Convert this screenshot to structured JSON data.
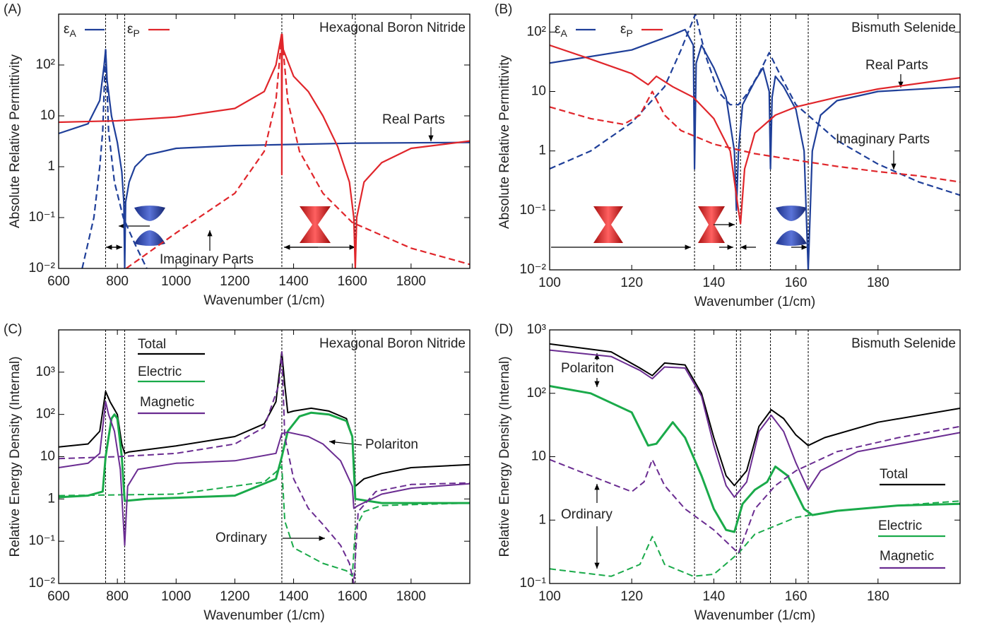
{
  "chart_data": [
    {
      "type": "line",
      "panel": "(A)",
      "title": "Hexagonal Boron Nitride",
      "xlabel": "Wavenumber (1/cm)",
      "ylabel": "Absolute Relative Permittivity",
      "ylog": true,
      "xlim": [
        600,
        2000
      ],
      "ylim": [
        0.01,
        1000
      ],
      "xticks": [
        600,
        800,
        1000,
        1200,
        1400,
        1600,
        1800
      ],
      "yticks": [
        {
          "value": 0.01,
          "label": "10⁻²"
        },
        {
          "value": 0.1,
          "label": "10⁻¹"
        },
        1,
        10,
        {
          "value": 100,
          "label": "10²"
        }
      ],
      "vlines": [
        760,
        825,
        1360,
        1610
      ],
      "legend": [
        {
          "name": "εA",
          "color": "#1f3f99"
        },
        {
          "name": "εP",
          "color": "#e0262b"
        }
      ],
      "annotations": [
        "Real Parts",
        "Imaginary Parts"
      ],
      "series": [
        {
          "color": "#1f3f99",
          "dash": false,
          "x": [
            600,
            700,
            740,
            755,
            760,
            765,
            780,
            800,
            815,
            822,
            825,
            828,
            840,
            860,
            900,
            1000,
            1200,
            1600,
            2000
          ],
          "values": [
            4.5,
            7,
            20,
            100,
            200,
            50,
            10,
            3,
            0.8,
            0.2,
            0.01,
            0.2,
            0.5,
            1.0,
            1.7,
            2.3,
            2.6,
            2.9,
            3.0
          ]
        },
        {
          "color": "#1f3f99",
          "dash": true,
          "x": [
            680,
            720,
            740,
            750,
            760,
            770,
            790,
            820,
            860,
            900
          ],
          "values": [
            0.01,
            0.1,
            1,
            5,
            200,
            5,
            0.5,
            0.1,
            0.03,
            0.01
          ]
        },
        {
          "color": "#e0262b",
          "dash": false,
          "x": [
            600,
            800,
            1000,
            1200,
            1300,
            1340,
            1355,
            1359,
            1360,
            1361,
            1365,
            1400,
            1450,
            1500,
            1550,
            1590,
            1605,
            1610,
            1615,
            1640,
            1700,
            1800,
            2000
          ],
          "values": [
            7.5,
            8,
            9.5,
            14,
            30,
            100,
            300,
            400,
            0.7,
            400,
            200,
            60,
            30,
            10,
            2.5,
            0.5,
            0.1,
            0.01,
            0.1,
            0.5,
            1.2,
            2.3,
            3.2
          ]
        },
        {
          "color": "#e0262b",
          "dash": true,
          "x": [
            830,
            1000,
            1200,
            1300,
            1340,
            1360,
            1380,
            1420,
            1500,
            1600,
            1800,
            2000
          ],
          "values": [
            0.01,
            0.05,
            0.3,
            2,
            20,
            400,
            20,
            2,
            0.3,
            0.08,
            0.025,
            0.012
          ]
        }
      ]
    },
    {
      "type": "line",
      "panel": "(B)",
      "title": "Bismuth Selenide",
      "xlabel": "Wavenumber (1/cm)",
      "ylabel": "Absolute Relative Permittivity",
      "ylog": true,
      "xlim": [
        100,
        200
      ],
      "ylim": [
        0.01,
        200
      ],
      "xticks": [
        100,
        120,
        140,
        160,
        180
      ],
      "yticks": [
        {
          "value": 0.01,
          "label": "10⁻²"
        },
        {
          "value": 0.1,
          "label": "10⁻¹"
        },
        1,
        10,
        {
          "value": 100,
          "label": "10²"
        }
      ],
      "vlines": [
        135.3,
        145.5,
        146.5,
        153.8,
        163
      ],
      "legend": [
        {
          "name": "εA",
          "color": "#1f3f99"
        },
        {
          "name": "εP",
          "color": "#e0262b"
        }
      ],
      "annotations": [
        "Real Parts",
        "Imaginary Parts"
      ],
      "series": [
        {
          "color": "#1f3f99",
          "dash": false,
          "x": [
            100,
            120,
            130,
            133,
            135,
            135.3,
            135.7,
            137,
            140,
            143,
            145,
            145.5,
            146,
            147,
            150,
            152,
            153.5,
            153.8,
            154.2,
            155,
            157,
            160,
            162,
            163,
            164,
            166,
            170,
            180,
            200
          ],
          "values": [
            30,
            50,
            90,
            110,
            60,
            0.5,
            30,
            60,
            25,
            8,
            1,
            0.1,
            1,
            6,
            15,
            25,
            10,
            0.5,
            8,
            18,
            12,
            5,
            1,
            0.01,
            1,
            4,
            7,
            10,
            12
          ]
        },
        {
          "color": "#1f3f99",
          "dash": true,
          "x": [
            100,
            110,
            120,
            128,
            132,
            135.5,
            138,
            141,
            144,
            146,
            148,
            151,
            153.5,
            156,
            160,
            165,
            170,
            180,
            190,
            200
          ],
          "values": [
            0.5,
            1,
            3,
            12,
            50,
            200,
            40,
            10,
            6,
            6,
            9,
            20,
            45,
            20,
            6,
            3,
            1.5,
            0.6,
            0.3,
            0.18
          ]
        },
        {
          "color": "#e0262b",
          "dash": false,
          "x": [
            100,
            110,
            120,
            124,
            126,
            130,
            135,
            140,
            144,
            146,
            146.5,
            147.5,
            150,
            155,
            160,
            170,
            180,
            200
          ],
          "values": [
            60,
            35,
            20,
            13,
            18,
            12,
            8,
            3.5,
            1,
            0.1,
            0.06,
            0.5,
            2,
            4,
            5.5,
            8,
            11,
            17
          ]
        },
        {
          "color": "#e0262b",
          "dash": true,
          "x": [
            100,
            110,
            118,
            122,
            125,
            128,
            132,
            140,
            150,
            160,
            170,
            180,
            190,
            200
          ],
          "values": [
            5.5,
            3.5,
            2.8,
            4,
            10,
            4,
            2.2,
            1.3,
            0.9,
            0.7,
            0.55,
            0.45,
            0.38,
            0.3
          ]
        }
      ]
    },
    {
      "type": "line",
      "panel": "(C)",
      "title": "Hexagonal Boron Nitride",
      "xlabel": "Wavenumber (1/cm)",
      "ylabel": "Relative Energy Density (Internal)",
      "ylog": true,
      "xlim": [
        600,
        2000
      ],
      "ylim": [
        0.01,
        10000
      ],
      "xticks": [
        600,
        800,
        1000,
        1200,
        1400,
        1600,
        1800
      ],
      "yticks": [
        {
          "value": 0.01,
          "label": "10⁻²"
        },
        {
          "value": 0.1,
          "label": "10⁻¹"
        },
        1,
        10,
        {
          "value": 100,
          "label": "10²"
        },
        {
          "value": 1000,
          "label": "10³"
        }
      ],
      "vlines": [
        760,
        825,
        1360,
        1610
      ],
      "legend": [
        {
          "name": "Total",
          "color": "#000000"
        },
        {
          "name": "Electric",
          "color": "#1aaa4a"
        },
        {
          "name": "Magnetic",
          "color": "#6a2c91"
        }
      ],
      "annotations": [
        "Polariton",
        "Ordinary"
      ],
      "series": [
        {
          "color": "#000000",
          "dash": false,
          "width": 2,
          "x": [
            600,
            700,
            740,
            760,
            775,
            800,
            815,
            825,
            840,
            1000,
            1200,
            1300,
            1340,
            1360,
            1370,
            1380,
            1400,
            1460,
            1520,
            1580,
            1600,
            1610,
            1640,
            1700,
            1800,
            2000
          ],
          "values": [
            17,
            20,
            40,
            350,
            200,
            100,
            20,
            12,
            13,
            18,
            30,
            60,
            200,
            3000,
            500,
            110,
            120,
            140,
            120,
            80,
            30,
            2,
            3,
            4,
            5.5,
            6.5
          ]
        },
        {
          "color": "#1aaa4a",
          "dash": false,
          "width": 3,
          "x": [
            600,
            700,
            750,
            760,
            780,
            790,
            800,
            815,
            825,
            900,
            1200,
            1340,
            1360,
            1380,
            1420,
            1460,
            1520,
            1580,
            1600,
            1610,
            1700,
            1800,
            2000
          ],
          "values": [
            1.1,
            1.2,
            1.5,
            10,
            80,
            100,
            80,
            10,
            0.9,
            1.0,
            1.2,
            3,
            10,
            40,
            90,
            110,
            100,
            70,
            30,
            1,
            0.8,
            0.8,
            0.8
          ]
        },
        {
          "color": "#1aaa4a",
          "dash": true,
          "width": 2,
          "x": [
            600,
            1000,
            1300,
            1350,
            1360,
            1370,
            1400,
            1500,
            1580,
            1600,
            1610,
            1640,
            1700,
            2000
          ],
          "values": [
            1.2,
            1.3,
            2.5,
            5,
            6,
            0.3,
            0.07,
            0.03,
            0.02,
            0.015,
            0.2,
            0.5,
            0.7,
            0.8
          ]
        },
        {
          "color": "#6a2c91",
          "dash": false,
          "width": 2,
          "x": [
            600,
            700,
            740,
            760,
            770,
            790,
            810,
            825,
            835,
            870,
            1000,
            1200,
            1340,
            1360,
            1380,
            1450,
            1500,
            1560,
            1600,
            1605,
            1620,
            1700,
            1800,
            2000
          ],
          "values": [
            5.5,
            7,
            12,
            200,
            100,
            40,
            5,
            0.08,
            2,
            5,
            7,
            8,
            12,
            35,
            38,
            30,
            20,
            8,
            2,
            0.6,
            0.7,
            1.3,
            1.8,
            2.3
          ]
        },
        {
          "color": "#6a2c91",
          "dash": true,
          "width": 2,
          "x": [
            600,
            800,
            1000,
            1200,
            1300,
            1350,
            1360,
            1370,
            1400,
            1450,
            1500,
            1560,
            1590,
            1605,
            1620,
            1680,
            1800,
            2000
          ],
          "values": [
            9,
            10,
            12,
            20,
            50,
            500,
            3000,
            30,
            3,
            0.6,
            0.25,
            0.08,
            0.03,
            0.01,
            0.5,
            1.5,
            2.2,
            2.4
          ]
        }
      ]
    },
    {
      "type": "line",
      "panel": "(D)",
      "title": "Bismuth Selenide",
      "xlabel": "Wavenumber (1/cm)",
      "ylabel": "Relative Energy Density (Internal)",
      "ylog": true,
      "xlim": [
        100,
        200
      ],
      "ylim": [
        0.1,
        1000
      ],
      "xticks": [
        100,
        120,
        140,
        160,
        180
      ],
      "yticks": [
        {
          "value": 0.1,
          "label": "10⁻¹"
        },
        1,
        10,
        {
          "value": 100,
          "label": "10²"
        },
        {
          "value": 1000,
          "label": "10³"
        }
      ],
      "vlines": [
        135.3,
        145.5,
        146.5,
        153.8,
        163
      ],
      "legend": [
        {
          "name": "Total",
          "color": "#000000"
        },
        {
          "name": "Electric",
          "color": "#1aaa4a"
        },
        {
          "name": "Magnetic",
          "color": "#6a2c91"
        }
      ],
      "annotations": [
        "Polariton",
        "Ordinary"
      ],
      "series": [
        {
          "color": "#000000",
          "dash": false,
          "width": 2,
          "x": [
            100,
            115,
            122,
            125,
            128,
            133,
            137,
            140,
            143,
            145,
            148,
            151,
            154,
            157,
            160,
            163,
            167,
            180,
            200
          ],
          "values": [
            600,
            450,
            250,
            190,
            300,
            280,
            100,
            20,
            5,
            3.5,
            6,
            30,
            55,
            40,
            22,
            15,
            20,
            35,
            58
          ]
        },
        {
          "color": "#6a2c91",
          "dash": false,
          "width": 2,
          "x": [
            100,
            115,
            122,
            125,
            128,
            133,
            137,
            140,
            143,
            145,
            148,
            151,
            154,
            157,
            160,
            163,
            166,
            175,
            200
          ],
          "values": [
            480,
            380,
            230,
            170,
            260,
            250,
            90,
            15,
            3.5,
            2.3,
            4,
            25,
            45,
            25,
            8,
            3,
            6,
            12,
            24
          ]
        },
        {
          "color": "#1aaa4a",
          "dash": false,
          "width": 3,
          "x": [
            100,
            110,
            120,
            124,
            126,
            130,
            133,
            137,
            140,
            143,
            145,
            147,
            150,
            153,
            155,
            158,
            162,
            164,
            170,
            185,
            200
          ],
          "values": [
            130,
            100,
            50,
            15,
            16,
            35,
            20,
            5,
            1.5,
            0.7,
            0.65,
            1.8,
            3,
            4,
            7,
            5,
            1.5,
            1.2,
            1.4,
            1.7,
            1.8
          ]
        },
        {
          "color": "#1aaa4a",
          "dash": true,
          "width": 2,
          "x": [
            100,
            115,
            122,
            125,
            128,
            135,
            140,
            146,
            150,
            160,
            170,
            185,
            200
          ],
          "values": [
            0.17,
            0.13,
            0.2,
            0.55,
            0.2,
            0.13,
            0.14,
            0.3,
            0.6,
            1.1,
            1.4,
            1.7,
            2.0
          ]
        },
        {
          "color": "#6a2c91",
          "dash": true,
          "width": 2,
          "x": [
            100,
            110,
            120,
            123,
            125,
            128,
            133,
            140,
            146,
            150,
            155,
            160,
            170,
            185,
            200
          ],
          "values": [
            9,
            5,
            2.8,
            4,
            9,
            3.5,
            1.5,
            0.7,
            0.3,
            1.5,
            3.5,
            6,
            12,
            20,
            30
          ]
        }
      ]
    }
  ]
}
